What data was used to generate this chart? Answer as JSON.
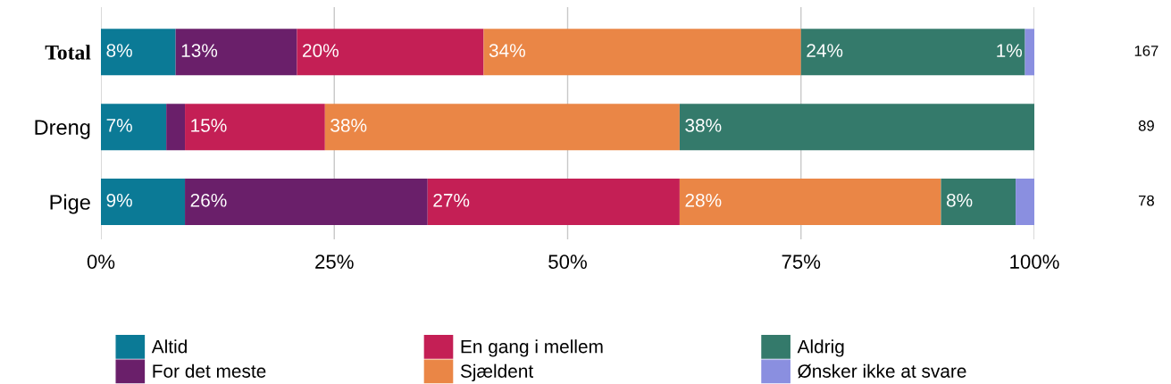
{
  "chart_data": {
    "type": "bar",
    "orientation": "horizontal",
    "stacked": true,
    "categories": [
      "Total",
      "Dreng",
      "Pige"
    ],
    "series": [
      {
        "name": "Altid",
        "color": "#0b7a96",
        "values": [
          8,
          7,
          9
        ],
        "value_labels": [
          "8%",
          "7%",
          "9%"
        ]
      },
      {
        "name": "For det meste",
        "color": "#6a1f6a",
        "values": [
          13,
          2,
          26
        ],
        "value_labels": [
          "13%",
          null,
          "26%"
        ]
      },
      {
        "name": "En gang i mellem",
        "color": "#c41f55",
        "values": [
          20,
          15,
          27
        ],
        "value_labels": [
          "20%",
          "15%",
          "27%"
        ]
      },
      {
        "name": "Sjældent",
        "color": "#ea8646",
        "values": [
          34,
          38,
          28
        ],
        "value_labels": [
          "34%",
          "38%",
          "28%"
        ]
      },
      {
        "name": "Aldrig",
        "color": "#347a6b",
        "values": [
          24,
          38,
          8
        ],
        "value_labels": [
          "24%",
          "38%",
          "8%"
        ]
      },
      {
        "name": "Ønsker ikke at svare",
        "color": "#8a8fe0",
        "values": [
          1,
          null,
          2
        ],
        "value_labels": [
          "1%",
          null,
          null
        ]
      }
    ],
    "xlim": [
      0,
      100
    ],
    "xticks": [
      {
        "value": 0,
        "label": "0%"
      },
      {
        "value": 25,
        "label": "25%"
      },
      {
        "value": 50,
        "label": "50%"
      },
      {
        "value": 75,
        "label": "75%"
      },
      {
        "value": 100,
        "label": "100%"
      }
    ],
    "grid": "x",
    "legend": "bottom",
    "annotations": [
      "167",
      "89",
      "78"
    ]
  }
}
